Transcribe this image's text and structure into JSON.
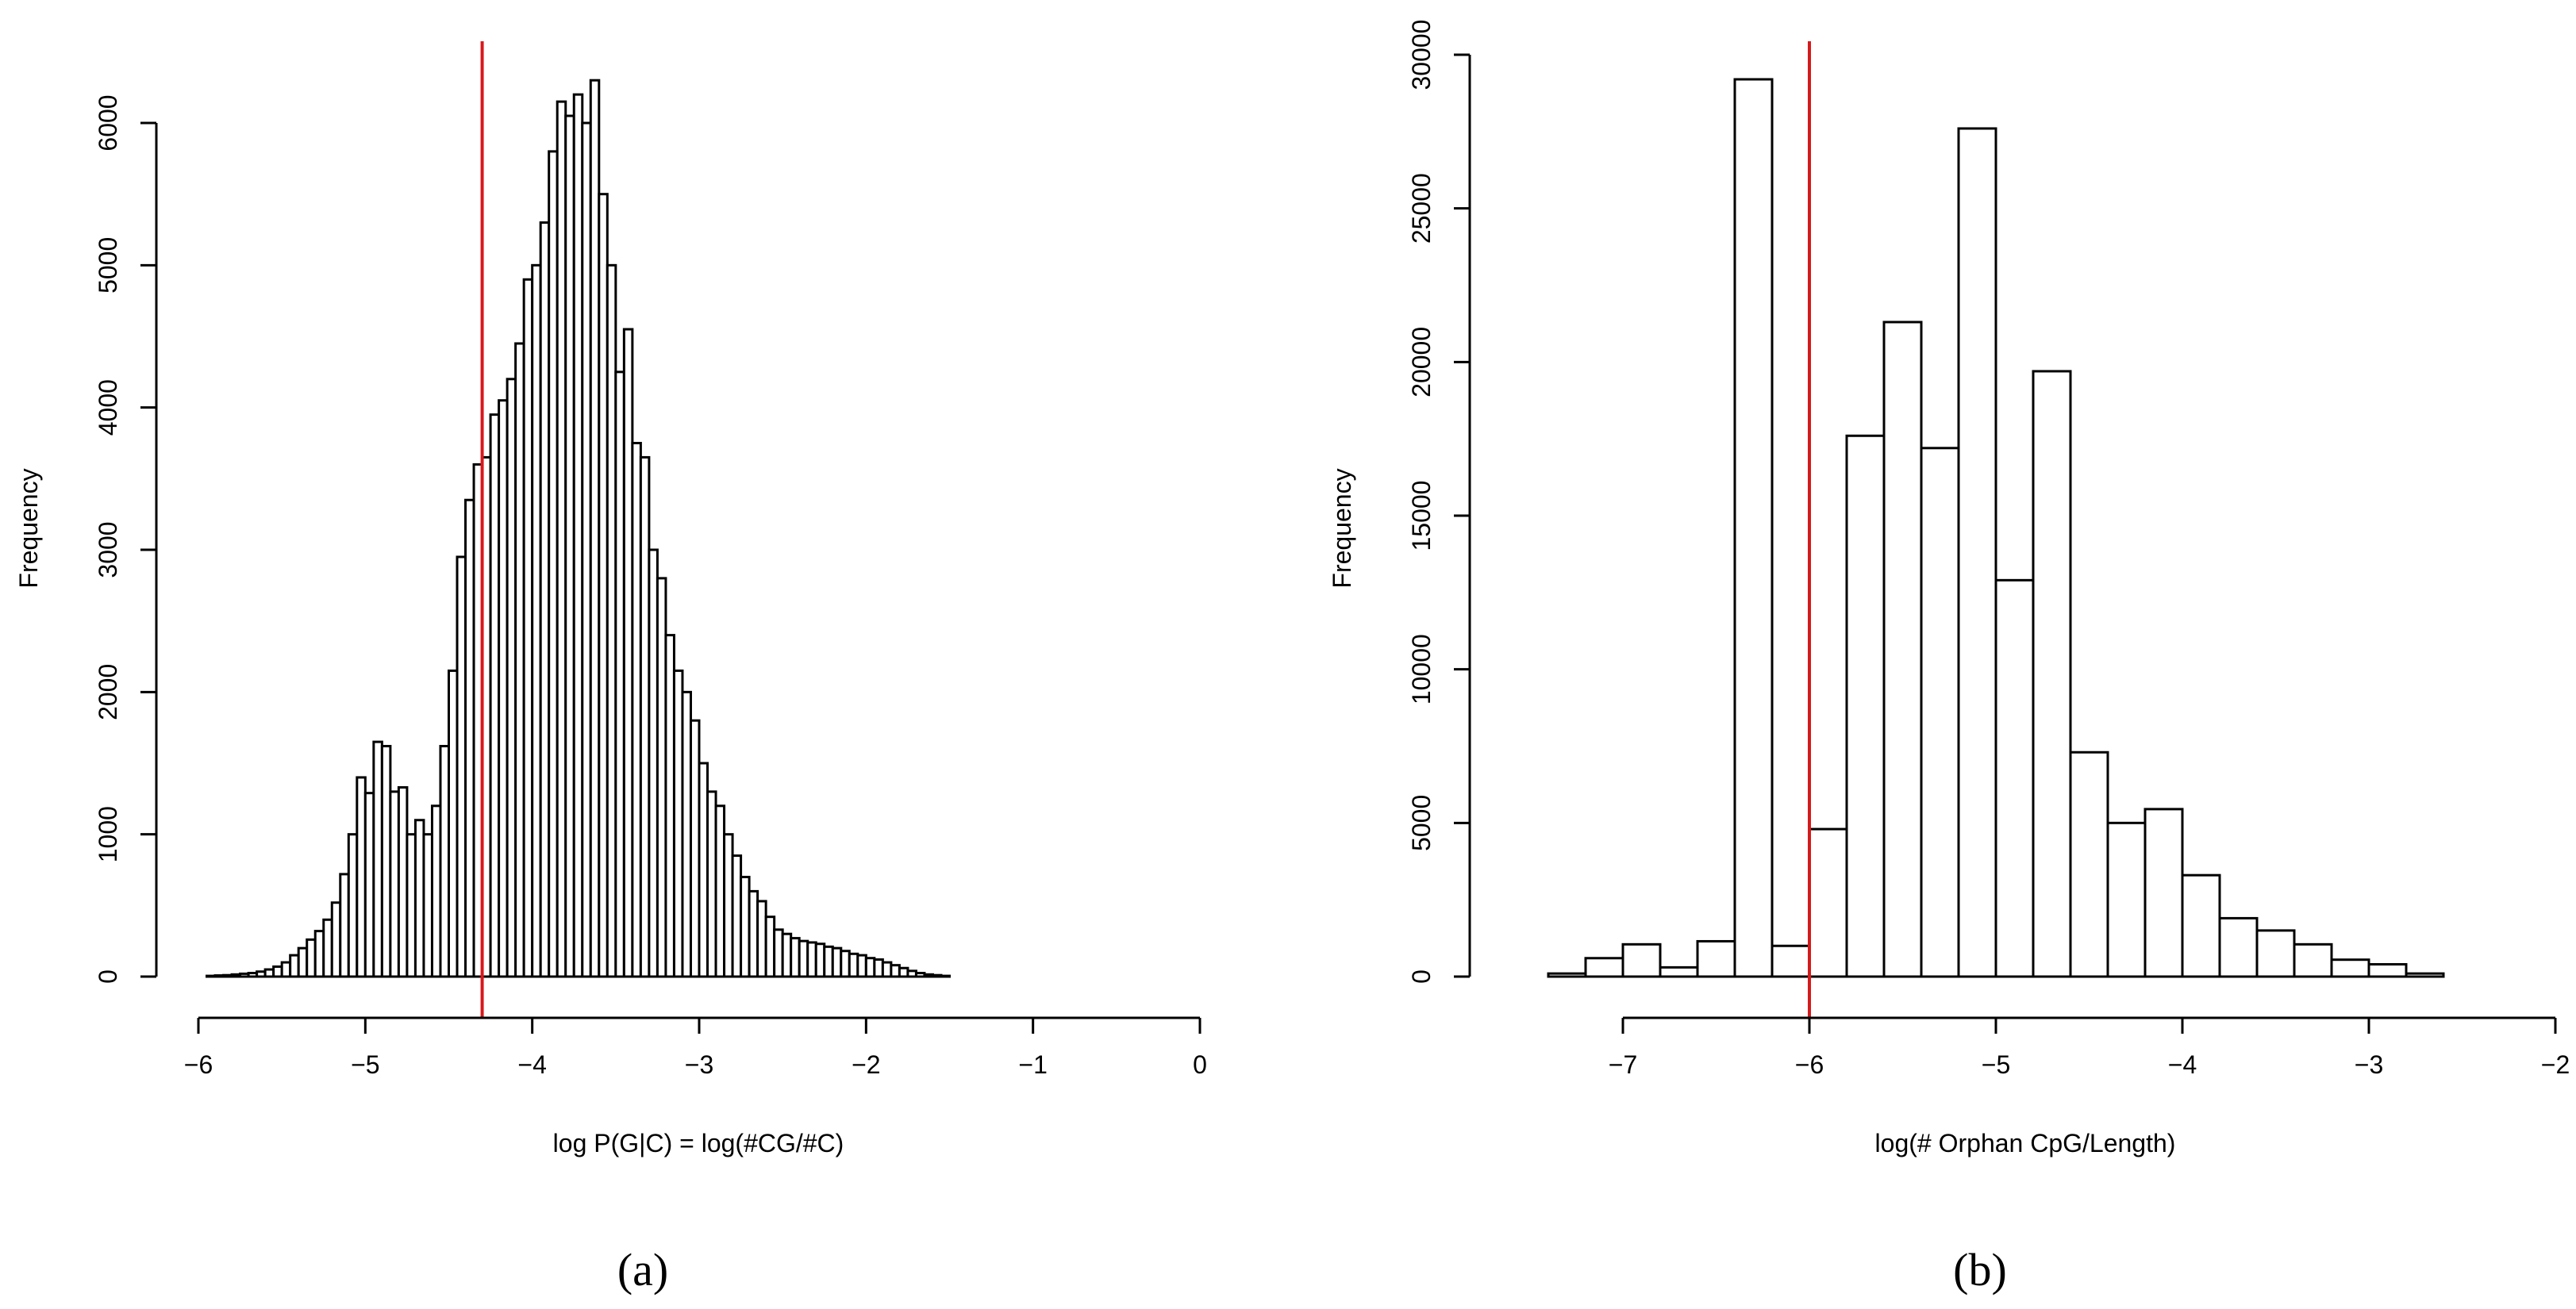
{
  "chart_data": [
    {
      "type": "bar",
      "panel_label": "(a)",
      "xlabel": "log P(G|C) = log(#CG/#C)",
      "ylabel": "Frequency",
      "xlim": [
        -6,
        0
      ],
      "ylim": [
        0,
        6000
      ],
      "x_ticks": [
        -6,
        -5,
        -4,
        -3,
        -2,
        -1,
        0
      ],
      "x_tick_labels": [
        "−6",
        "−5",
        "−4",
        "−3",
        "−2",
        "−1",
        "0"
      ],
      "y_ticks": [
        0,
        1000,
        2000,
        3000,
        4000,
        5000,
        6000
      ],
      "y_tick_labels": [
        "0",
        "1000",
        "2000",
        "3000",
        "4000",
        "5000",
        "6000"
      ],
      "bin_start": -5.95,
      "bin_width": 0.05,
      "values": [
        5,
        8,
        10,
        15,
        20,
        25,
        35,
        50,
        70,
        100,
        150,
        200,
        260,
        320,
        400,
        520,
        720,
        1000,
        1400,
        1290,
        1650,
        1620,
        1300,
        1330,
        1000,
        1100,
        1000,
        1200,
        1620,
        2150,
        2950,
        3350,
        3600,
        3650,
        3950,
        4050,
        4200,
        4450,
        4900,
        5000,
        5300,
        5800,
        6150,
        6050,
        6200,
        6000,
        6300,
        5500,
        5000,
        4250,
        4550,
        3750,
        3650,
        3000,
        2800,
        2400,
        2150,
        2000,
        1800,
        1500,
        1300,
        1200,
        1000,
        850,
        700,
        600,
        530,
        420,
        330,
        300,
        270,
        250,
        240,
        230,
        210,
        200,
        180,
        160,
        150,
        130,
        120,
        100,
        80,
        60,
        40,
        25,
        15,
        10,
        5
      ],
      "reference_line_x": -4.3,
      "reference_line_color": "#d7191c"
    },
    {
      "type": "bar",
      "panel_label": "(b)",
      "xlabel": "log(# Orphan CpG/Length)",
      "ylabel": "Frequency",
      "xlim": [
        -7,
        -2
      ],
      "ylim": [
        0,
        30000
      ],
      "x_ticks": [
        -7,
        -6,
        -5,
        -4,
        -3,
        -2
      ],
      "x_tick_labels": [
        "−7",
        "−6",
        "−5",
        "−4",
        "−3",
        "−2"
      ],
      "y_ticks": [
        0,
        5000,
        10000,
        15000,
        20000,
        25000,
        30000
      ],
      "y_tick_labels": [
        "0",
        "5000",
        "10000",
        "15000",
        "20000",
        "25000",
        "30000"
      ],
      "bin_start": -7.4,
      "bin_width": 0.2,
      "values": [
        100,
        600,
        1050,
        300,
        1150,
        29200,
        1000,
        4800,
        17600,
        21300,
        17200,
        27600,
        12900,
        19700,
        7300,
        5000,
        5450,
        3300,
        1900,
        1500,
        1050,
        550,
        400,
        100
      ],
      "reference_line_x": -6,
      "reference_line_color": "#d7191c"
    }
  ]
}
